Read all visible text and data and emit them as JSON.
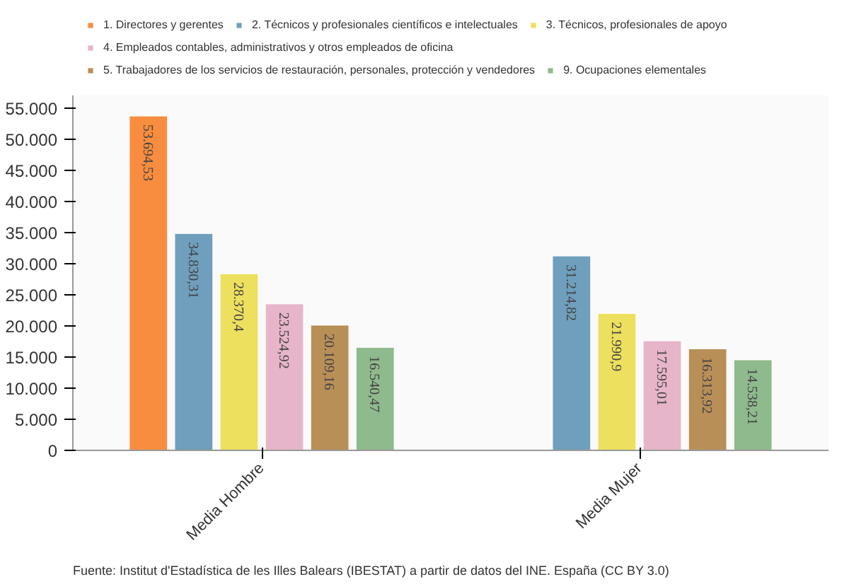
{
  "chart_data": {
    "type": "bar",
    "categories": [
      "Media Hombre",
      "Media Mujer"
    ],
    "series": [
      {
        "name": "1. Directores y gerentes",
        "color": "#f98d3f",
        "values": [
          53694.53,
          null
        ],
        "value_labels": [
          "53.694,53",
          null
        ]
      },
      {
        "name": "2. Técnicos y profesionales científicos e intelectuales",
        "color": "#6f9fbc",
        "values": [
          34830.31,
          31214.82
        ],
        "value_labels": [
          "34.830,31",
          "31.214,82"
        ]
      },
      {
        "name": "3. Técnicos, profesionales de apoyo",
        "color": "#ede05e",
        "values": [
          28370.4,
          21990.9
        ],
        "value_labels": [
          "28.370,4",
          "21.990,9"
        ]
      },
      {
        "name": "4. Empleados contables, administrativos y otros empleados de oficina",
        "color": "#e6b5c9",
        "values": [
          23524.92,
          17595.01
        ],
        "value_labels": [
          "23.524,92",
          "17.595,01"
        ]
      },
      {
        "name": "5. Trabajadores de los servicios de restauración, personales, protección y vendedores",
        "color": "#b98f58",
        "values": [
          20109.16,
          16313.92
        ],
        "value_labels": [
          "20.109,16",
          "16.313,92"
        ]
      },
      {
        "name": "9. Ocupaciones elementales",
        "color": "#8fba8d",
        "values": [
          16540.47,
          14538.21
        ],
        "value_labels": [
          "16.540,47",
          "14.538,21"
        ]
      }
    ],
    "ylim": [
      0,
      57000
    ],
    "yticks": [
      {
        "value": 0,
        "label": "0"
      },
      {
        "value": 5000,
        "label": "5.000"
      },
      {
        "value": 10000,
        "label": "10.000"
      },
      {
        "value": 15000,
        "label": "15.000"
      },
      {
        "value": 20000,
        "label": "20.000"
      },
      {
        "value": 25000,
        "label": "25.000"
      },
      {
        "value": 30000,
        "label": "30.000"
      },
      {
        "value": 35000,
        "label": "35.000"
      },
      {
        "value": 40000,
        "label": "40.000"
      },
      {
        "value": 45000,
        "label": "45.000"
      },
      {
        "value": 50000,
        "label": "50.000"
      },
      {
        "value": 55000,
        "label": "55.000"
      }
    ],
    "grid": false,
    "legend": "top",
    "annotations": [
      "Fuente: Institut d'Estadística de les Illes Balears (IBESTAT) a partir de datos del INE. España (CC BY 3.0)"
    ]
  }
}
